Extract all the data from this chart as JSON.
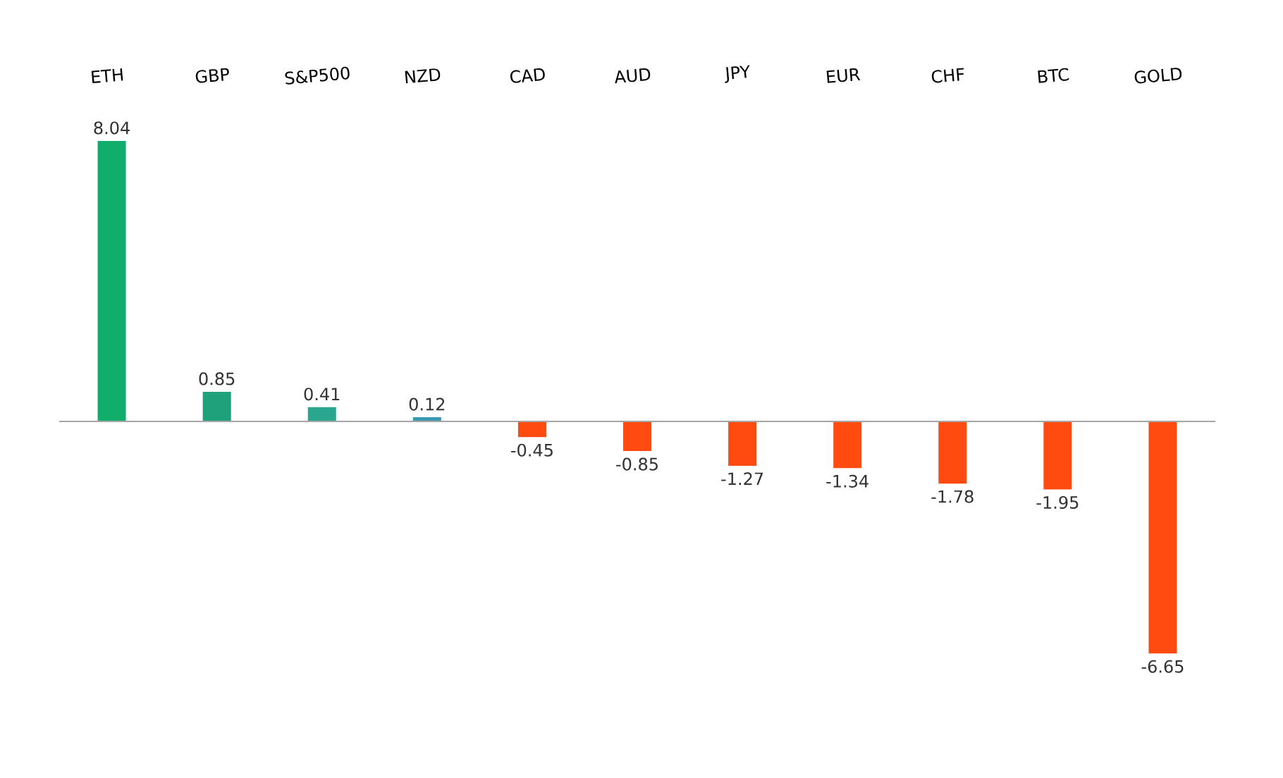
{
  "chart_data": {
    "type": "bar",
    "categories": [
      "ETH",
      "GBP",
      "S&P500",
      "NZD",
      "CAD",
      "AUD",
      "JPY",
      "EUR",
      "CHF",
      "BTC",
      "GOLD"
    ],
    "values": [
      8.04,
      0.85,
      0.41,
      0.12,
      -0.45,
      -0.85,
      -1.27,
      -1.34,
      -1.78,
      -1.95,
      -6.65
    ],
    "colors": [
      "#11ad6b",
      "#1fa27c",
      "#2aa68f",
      "#3a98b0",
      "#ff4a10",
      "#ff4a10",
      "#ff4a10",
      "#ff4a10",
      "#ff4a10",
      "#ff4a10",
      "#ff4a10"
    ],
    "data_labels": true
  }
}
